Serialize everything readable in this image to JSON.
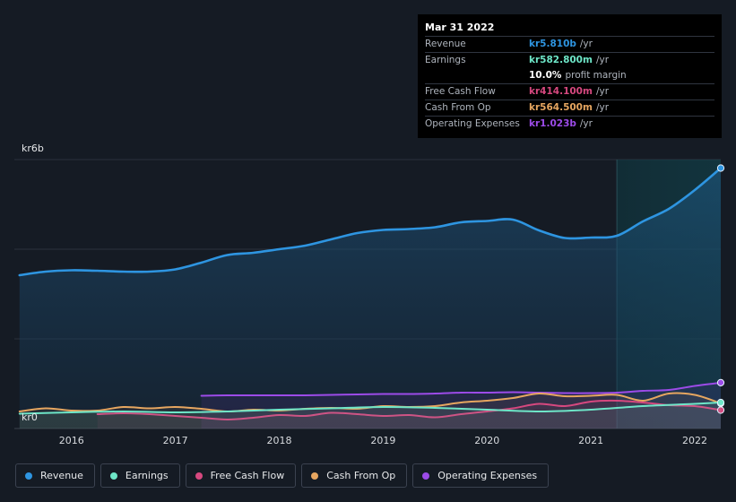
{
  "tooltip": {
    "date": "Mar 31 2022",
    "rows": [
      {
        "label": "Revenue",
        "value": "kr5.810b",
        "unit": "/yr",
        "color": "#2e95e1"
      },
      {
        "label": "Earnings",
        "value": "kr582.800m",
        "unit": "/yr",
        "color": "#6ee6c8"
      },
      {
        "label": "",
        "value": "10.0%",
        "unit": "profit margin",
        "color": "#ffffff"
      },
      {
        "label": "Free Cash Flow",
        "value": "kr414.100m",
        "unit": "/yr",
        "color": "#d6487f"
      },
      {
        "label": "Cash From Op",
        "value": "kr564.500m",
        "unit": "/yr",
        "color": "#e6a660"
      },
      {
        "label": "Operating Expenses",
        "value": "kr1.023b",
        "unit": "/yr",
        "color": "#9c4be8"
      }
    ]
  },
  "chart_data": {
    "type": "line",
    "y_top_label": "kr6b",
    "y_bottom_label": "kr0",
    "ylim": [
      0,
      6
    ],
    "xlim": [
      2015.45,
      2022.25
    ],
    "x_ticks": [
      "2016",
      "2017",
      "2018",
      "2019",
      "2020",
      "2021",
      "2022"
    ],
    "highlight_from": 2021.25,
    "series": [
      {
        "name": "Revenue",
        "color": "#2e95e1",
        "fill": true,
        "x": [
          2015.5,
          2015.75,
          2016.0,
          2016.25,
          2016.5,
          2016.75,
          2017.0,
          2017.25,
          2017.5,
          2017.75,
          2018.0,
          2018.25,
          2018.5,
          2018.75,
          2019.0,
          2019.25,
          2019.5,
          2019.75,
          2020.0,
          2020.25,
          2020.5,
          2020.75,
          2021.0,
          2021.25,
          2021.5,
          2021.75,
          2022.0,
          2022.25
        ],
        "y": [
          3.42,
          3.5,
          3.53,
          3.52,
          3.5,
          3.5,
          3.55,
          3.7,
          3.87,
          3.92,
          4.0,
          4.08,
          4.22,
          4.36,
          4.43,
          4.45,
          4.49,
          4.6,
          4.63,
          4.66,
          4.42,
          4.25,
          4.26,
          4.3,
          4.62,
          4.9,
          5.32,
          5.81
        ]
      },
      {
        "name": "Earnings",
        "color": "#6ee6c8",
        "fill": false,
        "x": [
          2015.5,
          2016.0,
          2016.5,
          2017.0,
          2017.5,
          2018.0,
          2018.5,
          2019.0,
          2019.5,
          2020.0,
          2020.5,
          2021.0,
          2021.5,
          2022.0,
          2022.25
        ],
        "y": [
          0.33,
          0.36,
          0.38,
          0.36,
          0.38,
          0.42,
          0.45,
          0.48,
          0.46,
          0.42,
          0.38,
          0.42,
          0.5,
          0.55,
          0.58
        ]
      },
      {
        "name": "Free Cash Flow",
        "color": "#d6487f",
        "fill": false,
        "x": [
          2016.25,
          2016.5,
          2016.75,
          2017.0,
          2017.25,
          2017.5,
          2017.75,
          2018.0,
          2018.25,
          2018.5,
          2018.75,
          2019.0,
          2019.25,
          2019.5,
          2019.75,
          2020.0,
          2020.25,
          2020.5,
          2020.75,
          2021.0,
          2021.25,
          2021.5,
          2021.75,
          2022.0,
          2022.25
        ],
        "y": [
          0.32,
          0.34,
          0.32,
          0.28,
          0.24,
          0.2,
          0.24,
          0.3,
          0.28,
          0.35,
          0.32,
          0.28,
          0.3,
          0.25,
          0.32,
          0.38,
          0.45,
          0.55,
          0.5,
          0.6,
          0.62,
          0.58,
          0.52,
          0.5,
          0.41
        ]
      },
      {
        "name": "Cash From Op",
        "color": "#e6a660",
        "fill": false,
        "x": [
          2015.5,
          2015.75,
          2016.0,
          2016.25,
          2016.5,
          2016.75,
          2017.0,
          2017.25,
          2017.5,
          2017.75,
          2018.0,
          2018.25,
          2018.5,
          2018.75,
          2019.0,
          2019.25,
          2019.5,
          2019.75,
          2020.0,
          2020.25,
          2020.5,
          2020.75,
          2021.0,
          2021.25,
          2021.5,
          2021.75,
          2022.0,
          2022.25
        ],
        "y": [
          0.38,
          0.45,
          0.4,
          0.4,
          0.48,
          0.45,
          0.48,
          0.44,
          0.38,
          0.42,
          0.4,
          0.44,
          0.46,
          0.44,
          0.5,
          0.48,
          0.5,
          0.58,
          0.62,
          0.68,
          0.78,
          0.72,
          0.73,
          0.75,
          0.62,
          0.78,
          0.75,
          0.56
        ]
      },
      {
        "name": "Operating Expenses",
        "color": "#9c4be8",
        "fill": true,
        "x": [
          2017.25,
          2017.5,
          2017.75,
          2018.0,
          2018.25,
          2018.5,
          2018.75,
          2019.0,
          2019.25,
          2019.5,
          2019.75,
          2020.0,
          2020.25,
          2020.5,
          2020.75,
          2021.0,
          2021.25,
          2021.5,
          2021.75,
          2022.0,
          2022.25
        ],
        "y": [
          0.73,
          0.74,
          0.74,
          0.74,
          0.74,
          0.75,
          0.76,
          0.77,
          0.77,
          0.78,
          0.8,
          0.8,
          0.81,
          0.8,
          0.79,
          0.79,
          0.8,
          0.84,
          0.86,
          0.95,
          1.023
        ]
      }
    ]
  },
  "legend": [
    {
      "label": "Revenue",
      "color": "#2e95e1"
    },
    {
      "label": "Earnings",
      "color": "#6ee6c8"
    },
    {
      "label": "Free Cash Flow",
      "color": "#d6487f"
    },
    {
      "label": "Cash From Op",
      "color": "#e6a660"
    },
    {
      "label": "Operating Expenses",
      "color": "#9c4be8"
    }
  ]
}
